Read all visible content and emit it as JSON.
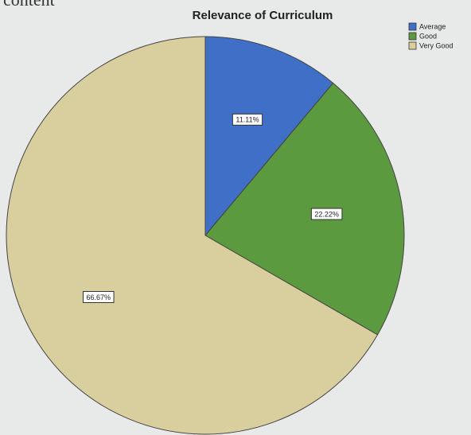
{
  "page_text": "content",
  "chart_data": {
    "type": "pie",
    "title": "Relevance of Curriculum",
    "categories": [
      "Average",
      "Good",
      "Very Good"
    ],
    "values": [
      11.11,
      22.22,
      66.67
    ],
    "value_labels": [
      "11.11%",
      "22.22%",
      "66.67%"
    ],
    "colors": [
      "#3f6fc6",
      "#5b9a3f",
      "#d9cf9e"
    ],
    "legend": "top-right"
  }
}
